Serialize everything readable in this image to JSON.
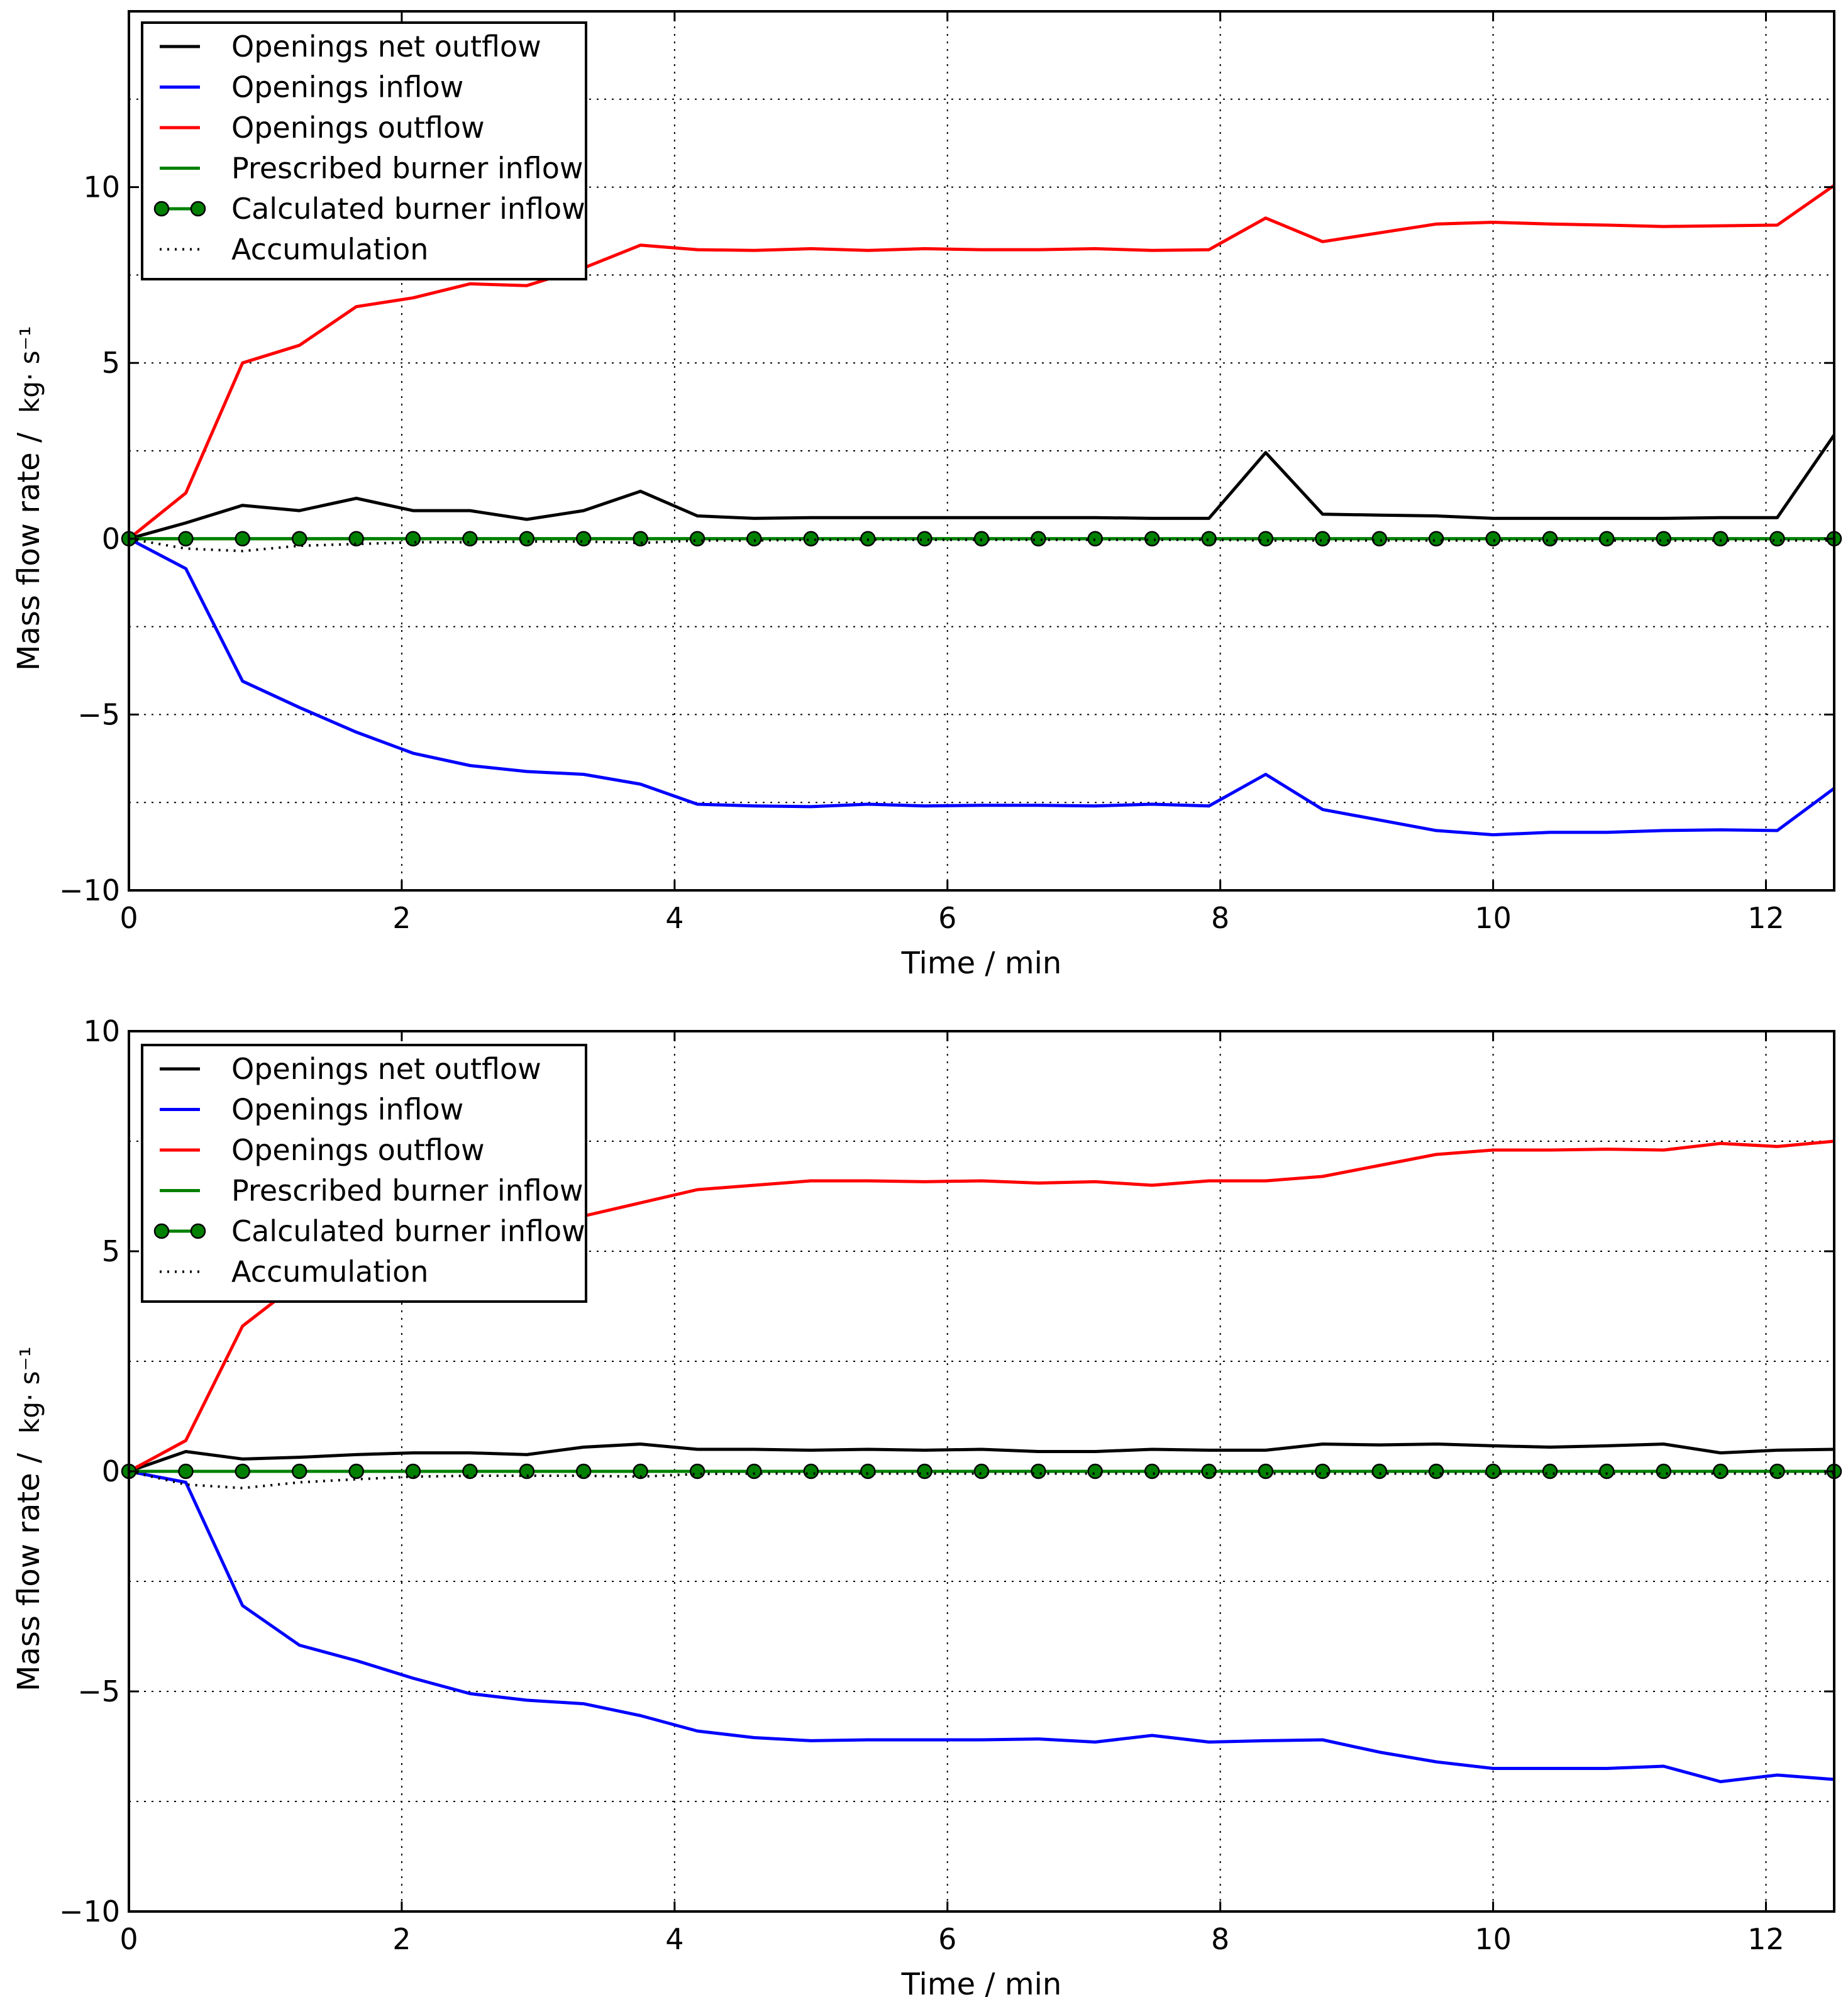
{
  "chart_data": [
    {
      "type": "line",
      "xlabel": "Time / min",
      "ylabel": "Mass flow rate /",
      "ylabel_unit": "kg· s⁻¹",
      "xlim": [
        0,
        12.5
      ],
      "ylim": [
        -10,
        15
      ],
      "xticks": [
        0,
        2,
        4,
        6,
        8,
        10,
        12
      ],
      "yticks": [
        -10,
        -5,
        0,
        5,
        10
      ],
      "ytick_labels": [
        "−10",
        "−5",
        "0",
        "5",
        "10"
      ],
      "grid": true,
      "legend_position": "top-left",
      "x": [
        0,
        0.417,
        0.833,
        1.25,
        1.667,
        2.083,
        2.5,
        2.917,
        3.333,
        3.75,
        4.167,
        4.583,
        5.0,
        5.417,
        5.833,
        6.25,
        6.667,
        7.083,
        7.5,
        7.917,
        8.333,
        8.75,
        9.167,
        9.583,
        10.0,
        10.417,
        10.833,
        11.25,
        11.667,
        12.083,
        12.5
      ],
      "series": [
        {
          "name": "Openings net outflow",
          "color": "#000000",
          "style": "solid",
          "values": [
            0,
            0.45,
            0.95,
            0.8,
            1.15,
            0.8,
            0.8,
            0.55,
            0.8,
            1.35,
            0.65,
            0.58,
            0.6,
            0.6,
            0.6,
            0.6,
            0.6,
            0.6,
            0.58,
            0.58,
            2.45,
            0.7,
            0.67,
            0.65,
            0.58,
            0.58,
            0.58,
            0.58,
            0.6,
            0.6,
            2.95
          ]
        },
        {
          "name": "Openings inflow",
          "color": "#0000ff",
          "style": "solid",
          "values": [
            0,
            -0.85,
            -4.05,
            -4.8,
            -5.5,
            -6.1,
            -6.45,
            -6.62,
            -6.7,
            -6.98,
            -7.55,
            -7.6,
            -7.62,
            -7.55,
            -7.6,
            -7.58,
            -7.58,
            -7.6,
            -7.55,
            -7.6,
            -6.7,
            -7.7,
            -8.0,
            -8.3,
            -8.42,
            -8.35,
            -8.35,
            -8.3,
            -8.28,
            -8.3,
            -7.1
          ]
        },
        {
          "name": "Openings outflow",
          "color": "#ff0000",
          "style": "solid",
          "values": [
            0,
            1.3,
            5.0,
            5.5,
            6.6,
            6.85,
            7.25,
            7.2,
            7.7,
            8.35,
            8.22,
            8.2,
            8.25,
            8.2,
            8.25,
            8.22,
            8.22,
            8.25,
            8.2,
            8.22,
            9.12,
            8.45,
            8.7,
            8.95,
            9.0,
            8.95,
            8.92,
            8.88,
            8.9,
            8.92,
            10.05
          ]
        },
        {
          "name": "Prescribed burner inflow",
          "color": "#008000",
          "style": "solid",
          "values": [
            0,
            0,
            0,
            0,
            0,
            0,
            0,
            0,
            0,
            0,
            0,
            0,
            0,
            0,
            0,
            0,
            0,
            0,
            0,
            0,
            0,
            0,
            0,
            0,
            0,
            0,
            0,
            0,
            0,
            0,
            0
          ]
        },
        {
          "name": "Calculated burner inflow",
          "color": "#008000",
          "style": "solid-marker",
          "values": [
            0,
            0,
            0,
            0,
            0,
            0,
            0,
            0,
            0,
            0,
            0,
            0,
            0,
            0,
            0,
            0,
            0,
            0,
            0,
            0,
            0,
            0,
            0,
            0,
            0,
            0,
            0,
            0,
            0,
            0,
            0
          ]
        },
        {
          "name": "Accumulation",
          "color": "#000000",
          "style": "dotted",
          "values": [
            0,
            -0.28,
            -0.35,
            -0.2,
            -0.15,
            -0.1,
            -0.1,
            -0.08,
            -0.08,
            -0.12,
            -0.05,
            -0.05,
            -0.03,
            -0.03,
            -0.03,
            -0.03,
            -0.03,
            -0.03,
            -0.03,
            -0.03,
            -0.05,
            -0.05,
            -0.05,
            -0.05,
            -0.05,
            -0.05,
            -0.05,
            -0.05,
            -0.05,
            -0.05,
            -0.05
          ]
        }
      ]
    },
    {
      "type": "line",
      "xlabel": "Time / min",
      "ylabel": "Mass flow rate /",
      "ylabel_unit": "kg· s⁻¹",
      "xlim": [
        0,
        12.5
      ],
      "ylim": [
        -10,
        10
      ],
      "xticks": [
        0,
        2,
        4,
        6,
        8,
        10,
        12
      ],
      "yticks": [
        -10,
        -5,
        0,
        5,
        10
      ],
      "ytick_labels": [
        "−10",
        "−5",
        "0",
        "5",
        "10"
      ],
      "grid": true,
      "legend_position": "top-left",
      "x": [
        0,
        0.417,
        0.833,
        1.25,
        1.667,
        2.083,
        2.5,
        2.917,
        3.333,
        3.75,
        4.167,
        4.583,
        5.0,
        5.417,
        5.833,
        6.25,
        6.667,
        7.083,
        7.5,
        7.917,
        8.333,
        8.75,
        9.167,
        9.583,
        10.0,
        10.417,
        10.833,
        11.25,
        11.667,
        12.083,
        12.5
      ],
      "series": [
        {
          "name": "Openings net outflow",
          "color": "#000000",
          "style": "solid",
          "values": [
            0,
            0.45,
            0.28,
            0.32,
            0.38,
            0.42,
            0.42,
            0.38,
            0.55,
            0.62,
            0.5,
            0.5,
            0.48,
            0.5,
            0.48,
            0.5,
            0.45,
            0.45,
            0.5,
            0.48,
            0.48,
            0.62,
            0.6,
            0.62,
            0.58,
            0.55,
            0.58,
            0.62,
            0.42,
            0.48,
            0.5
          ]
        },
        {
          "name": "Openings inflow",
          "color": "#0000ff",
          "style": "solid",
          "values": [
            0,
            -0.25,
            -3.05,
            -3.95,
            -4.3,
            -4.7,
            -5.05,
            -5.2,
            -5.28,
            -5.55,
            -5.9,
            -6.05,
            -6.12,
            -6.1,
            -6.1,
            -6.1,
            -6.08,
            -6.15,
            -6.0,
            -6.15,
            -6.12,
            -6.1,
            -6.38,
            -6.6,
            -6.75,
            -6.75,
            -6.75,
            -6.7,
            -7.05,
            -6.9,
            -7.0
          ]
        },
        {
          "name": "Openings outflow",
          "color": "#ff0000",
          "style": "solid",
          "values": [
            0,
            0.7,
            3.3,
            4.3,
            4.7,
            5.0,
            5.2,
            5.4,
            5.8,
            6.1,
            6.4,
            6.5,
            6.6,
            6.6,
            6.58,
            6.6,
            6.55,
            6.58,
            6.5,
            6.6,
            6.6,
            6.7,
            6.95,
            7.2,
            7.3,
            7.3,
            7.32,
            7.3,
            7.45,
            7.38,
            7.5
          ]
        },
        {
          "name": "Prescribed burner inflow",
          "color": "#008000",
          "style": "solid",
          "values": [
            0,
            0,
            0,
            0,
            0,
            0,
            0,
            0,
            0,
            0,
            0,
            0,
            0,
            0,
            0,
            0,
            0,
            0,
            0,
            0,
            0,
            0,
            0,
            0,
            0,
            0,
            0,
            0,
            0,
            0,
            0
          ]
        },
        {
          "name": "Calculated burner inflow",
          "color": "#008000",
          "style": "solid-marker",
          "values": [
            0,
            0,
            0,
            0,
            0,
            0,
            0,
            0,
            0,
            0,
            0,
            0,
            0,
            0,
            0,
            0,
            0,
            0,
            0,
            0,
            0,
            0,
            0,
            0,
            0,
            0,
            0,
            0,
            0,
            0,
            0
          ]
        },
        {
          "name": "Accumulation",
          "color": "#000000",
          "style": "dotted",
          "values": [
            0,
            -0.3,
            -0.38,
            -0.25,
            -0.18,
            -0.12,
            -0.1,
            -0.1,
            -0.1,
            -0.12,
            -0.06,
            -0.05,
            -0.05,
            -0.05,
            -0.05,
            -0.05,
            -0.05,
            -0.05,
            -0.05,
            -0.05,
            -0.05,
            -0.05,
            -0.05,
            -0.05,
            -0.05,
            -0.05,
            -0.05,
            -0.05,
            -0.05,
            -0.05,
            -0.05
          ]
        }
      ]
    }
  ]
}
